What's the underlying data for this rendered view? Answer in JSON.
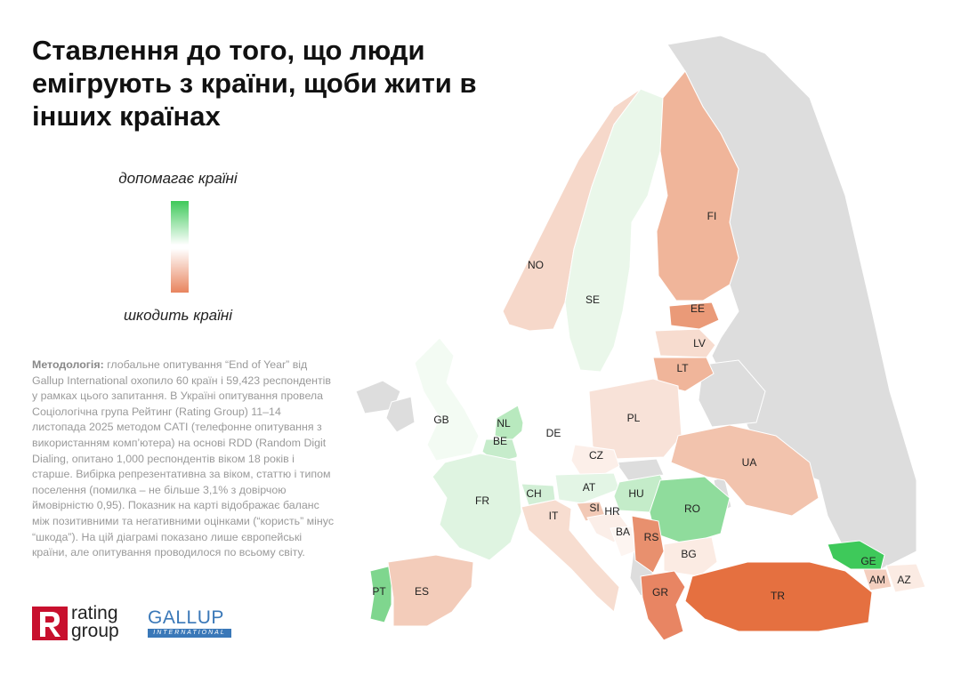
{
  "title": "Ставлення до того, що люди емігрують з країни, щоби жити в інших країнах",
  "legend": {
    "top": "допомагає країні",
    "bottom": "шкодить країні",
    "colors": {
      "help": "#3ec95a",
      "neutral": "#ffffff",
      "harm": "#e8845e"
    }
  },
  "methodology": {
    "label": "Методологія:",
    "text": " глобальне опитування “End of Year” від Gallup International охопило 60 країн і 59,423 респондентів у рамках цього запитання. В Україні опитування провела Соціологічна група Рейтинг (Rating Group) 11–14 листопада 2025 методом CATI (телефонне опитування з використанням комп’ютера) на основі RDD (Random Digit Dialing, опитано 1,000 респондентів віком 18 років і старше. Вибірка репрезентативна за віком, статтю і типом поселення (помилка – не більше 3,1% з довірчою ймовірністю 0,95). Показник на карті відображає баланс між позитивними та негативними оцінками (“користь” мінус “шкода”). На цій діаграмі показано лише європейські країни, але опитування проводилося по всьому світу."
  },
  "logos": {
    "rating_line1": "rating",
    "rating_line2": "group",
    "gallup": "GALLUP",
    "gallup_band": "INTERNATIONAL"
  },
  "map": {
    "no_data_color": "#dddddd",
    "countries": [
      {
        "code": "NO",
        "color": "#f6d8ca"
      },
      {
        "code": "SE",
        "color": "#eaf7ea"
      },
      {
        "code": "FI",
        "color": "#f0b59a"
      },
      {
        "code": "EE",
        "color": "#ea9a78"
      },
      {
        "code": "LV",
        "color": "#f7dccf"
      },
      {
        "code": "LT",
        "color": "#f0b59a"
      },
      {
        "code": "GB",
        "color": "#f3fbf3"
      },
      {
        "code": "NL",
        "color": "#b8e9be"
      },
      {
        "code": "BE",
        "color": "#c6eccb"
      },
      {
        "code": "DE",
        "color": "#ffffff"
      },
      {
        "code": "PL",
        "color": "#f8e2d8"
      },
      {
        "code": "CZ",
        "color": "#fcefe9"
      },
      {
        "code": "UA",
        "color": "#f2c3ad"
      },
      {
        "code": "FR",
        "color": "#dff4e1"
      },
      {
        "code": "CH",
        "color": "#d2efd6"
      },
      {
        "code": "AT",
        "color": "#e3f5e5"
      },
      {
        "code": "HU",
        "color": "#c4ecc9"
      },
      {
        "code": "RO",
        "color": "#8fdc9c"
      },
      {
        "code": "IT",
        "color": "#f7ddd0"
      },
      {
        "code": "SI",
        "color": "#f2c9b6"
      },
      {
        "code": "HR",
        "color": "#fbeee8"
      },
      {
        "code": "BA",
        "color": "#fdf5f1"
      },
      {
        "code": "RS",
        "color": "#e8906e"
      },
      {
        "code": "BG",
        "color": "#fbebe3"
      },
      {
        "code": "GE",
        "color": "#3ec95a"
      },
      {
        "code": "AM",
        "color": "#f4cfbf"
      },
      {
        "code": "AZ",
        "color": "#fbebe3"
      },
      {
        "code": "GR",
        "color": "#e88563"
      },
      {
        "code": "TR",
        "color": "#e57040"
      },
      {
        "code": "PT",
        "color": "#7fd68e"
      },
      {
        "code": "ES",
        "color": "#f3ccba"
      }
    ]
  }
}
